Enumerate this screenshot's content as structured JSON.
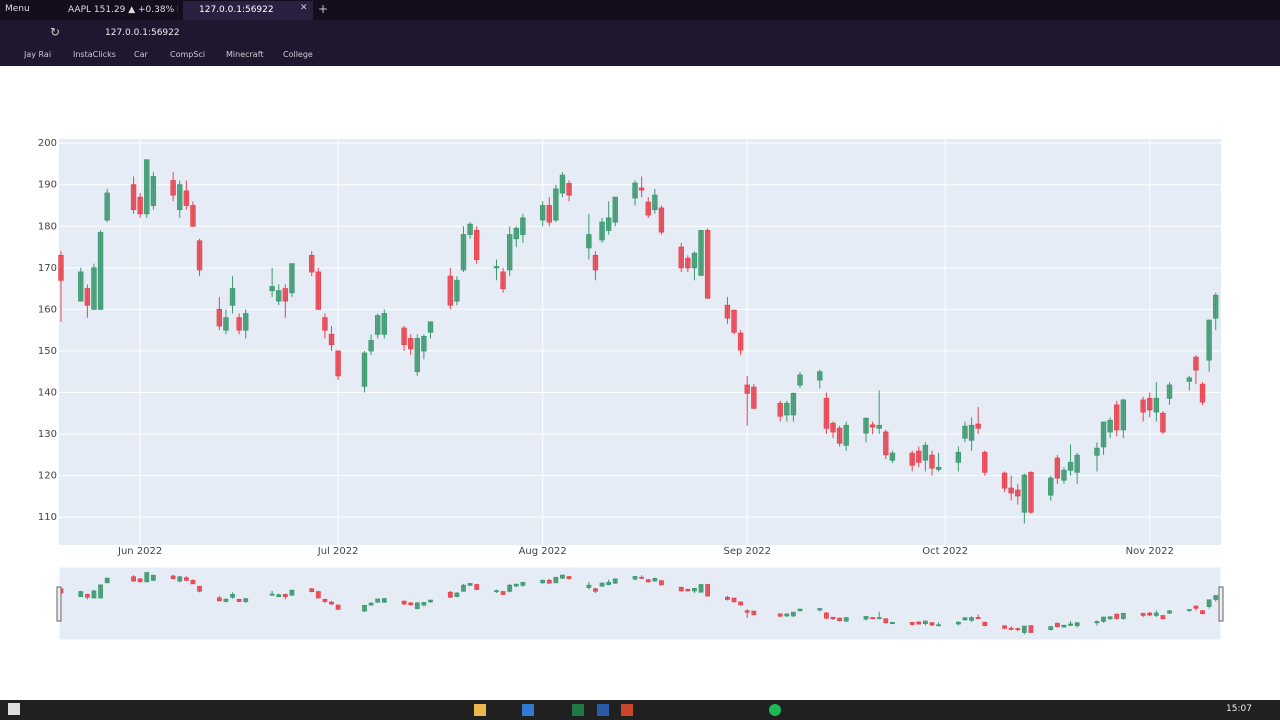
{
  "browser": {
    "menu": "Menu",
    "tabs": [
      "AAPL 151.29 ▲ +0.38% BT",
      "127.0.0.1:56922"
    ],
    "url": "127.0.0.1:56922",
    "bookmarks": [
      "Jay Rai",
      "InstaClicks",
      "Car",
      "CompSci",
      "Minecraft",
      "College"
    ]
  },
  "taskbar": {
    "time": "15:07"
  },
  "chart_data": {
    "type": "candlestick",
    "x": [
      -12,
      -9,
      -8,
      -7,
      -6,
      -5,
      -1,
      0,
      1,
      2,
      5,
      6,
      7,
      8,
      9,
      12,
      13,
      14,
      15,
      16,
      20,
      21,
      22,
      23,
      26,
      27,
      28,
      29,
      30,
      34,
      35,
      36,
      37,
      40,
      41,
      42,
      43,
      44,
      47,
      48,
      49,
      50,
      51,
      54,
      55,
      56,
      57,
      58,
      61,
      62,
      63,
      64,
      65,
      68,
      69,
      70,
      71,
      72,
      75,
      76,
      77,
      78,
      79,
      82,
      83,
      84,
      85,
      86,
      89,
      90,
      91,
      92,
      93,
      97,
      98,
      99,
      100,
      103,
      104,
      105,
      106,
      107,
      110,
      111,
      112,
      113,
      114,
      117,
      118,
      119,
      120,
      121,
      124,
      125,
      126,
      127,
      128,
      131,
      132,
      133,
      134,
      135,
      138,
      139,
      140,
      141,
      142,
      145,
      146,
      147,
      148,
      149,
      152,
      153,
      154,
      155,
      156,
      159,
      160,
      161,
      162,
      163
    ],
    "open": [
      173,
      162,
      165,
      160,
      160,
      181.5,
      190,
      187,
      183,
      185,
      191,
      184,
      188.5,
      185,
      176.5,
      160,
      155,
      161,
      158,
      155,
      164.5,
      162,
      165,
      164,
      173,
      169,
      158,
      154,
      150,
      141.5,
      150,
      154,
      154,
      155.5,
      153,
      145,
      150,
      154.5,
      168,
      162,
      169.5,
      178,
      179,
      170,
      169,
      169.5,
      177,
      178,
      181.5,
      185,
      181.5,
      188,
      190.3,
      174.8,
      173,
      176.7,
      179,
      181,
      186.8,
      189.2,
      185.8,
      184,
      184.4,
      175,
      172.3,
      170,
      168.2,
      179,
      161,
      159.8,
      154.3,
      141.8,
      141.3,
      137.4,
      134.6,
      134.6,
      141.8,
      143,
      138.6,
      132.6,
      131.4,
      127.3,
      130.2,
      132.2,
      131.4,
      130.5,
      123.7,
      125.4,
      125.9,
      123.7,
      124.9,
      121.5,
      123.2,
      129,
      128.5,
      132.4,
      125.6,
      120.6,
      117,
      116.5,
      111.2,
      120.8,
      115.3,
      124.2,
      118.9,
      121.3,
      120.8,
      124.9,
      126.9,
      130.5,
      137,
      131,
      138.2,
      138.6,
      135.3,
      135,
      138.6,
      142.7,
      148.5,
      142,
      147.8,
      157.9
    ],
    "high": [
      174,
      170,
      166,
      171,
      179,
      189,
      192,
      188,
      196,
      193,
      193,
      191,
      191,
      186,
      177,
      163,
      160,
      168,
      159,
      160,
      170,
      166,
      166,
      171,
      174,
      170,
      159,
      156,
      150,
      150,
      154,
      159,
      160,
      156,
      154,
      154,
      154,
      157,
      170,
      168,
      180,
      181,
      180,
      172,
      170,
      180,
      180,
      183,
      186,
      187,
      190,
      193,
      191,
      183,
      174,
      182,
      186,
      187,
      191,
      192,
      187,
      189,
      185,
      176,
      173,
      174,
      179,
      179.5,
      163,
      160,
      155,
      144,
      142,
      138,
      138,
      140,
      145,
      145.5,
      140,
      133,
      132,
      133,
      134,
      133,
      140.5,
      131,
      126,
      126,
      127,
      128,
      126,
      125.5,
      127,
      133,
      134,
      136.5,
      126,
      121,
      120,
      118,
      120.5,
      121,
      120,
      125,
      122,
      127.5,
      125.5,
      128,
      133,
      134,
      138,
      138.5,
      139,
      140,
      142.5,
      135.5,
      142.5,
      144,
      149,
      142.5,
      157.6,
      164
    ],
    "low": [
      157,
      162,
      158,
      160,
      160,
      181,
      183,
      182,
      182,
      184,
      186,
      182,
      184,
      180,
      168,
      155,
      154,
      159,
      154,
      153,
      163,
      161,
      158,
      163,
      168,
      160,
      153,
      150,
      143,
      140,
      149,
      153,
      153,
      150,
      149,
      144,
      148,
      153,
      160,
      161,
      169,
      177,
      171,
      167,
      164,
      168,
      175,
      176,
      180,
      180,
      181,
      187,
      186,
      172,
      167,
      176,
      178,
      180,
      185,
      187,
      182,
      183,
      178,
      169,
      169,
      167,
      168,
      162.5,
      156.5,
      154,
      149,
      132,
      136,
      133,
      133,
      133,
      141,
      141,
      130,
      129,
      127,
      126,
      128,
      130,
      130,
      124,
      123,
      121,
      122,
      121,
      120,
      121,
      121,
      128,
      126,
      130,
      120,
      116,
      114,
      113,
      108.5,
      110.8,
      114,
      118,
      118,
      120,
      118,
      121,
      125,
      129,
      129.5,
      129,
      133,
      134,
      133,
      130,
      137,
      140.5,
      142,
      137,
      145,
      155
    ],
    "close": [
      167,
      169,
      161,
      170,
      178.5,
      188,
      184,
      183,
      196,
      192,
      187.5,
      190,
      185,
      180,
      169.5,
      156,
      158,
      165,
      155,
      159,
      165.5,
      164.5,
      162,
      171,
      169,
      160,
      155,
      151.5,
      144,
      149.5,
      152.5,
      158.5,
      159,
      151.5,
      150.5,
      153,
      153.5,
      157,
      161,
      167,
      178,
      180.5,
      172,
      170.3,
      165,
      178,
      179.5,
      182,
      185,
      181,
      189,
      192.3,
      187.5,
      178,
      169.5,
      181,
      182,
      187,
      190.4,
      188.7,
      182.7,
      187.5,
      178.6,
      170,
      170,
      173.5,
      179,
      162.7,
      157.9,
      154.5,
      150.2,
      139.8,
      136.2,
      134.3,
      137.4,
      139.8,
      144.2,
      145,
      131.4,
      130.5,
      127.8,
      132.1,
      133.8,
      131.7,
      132.1,
      125,
      125.4,
      122.5,
      123.2,
      127.3,
      121.8,
      122,
      125.6,
      131.9,
      132.1,
      131.4,
      120.8,
      117,
      115.8,
      115.1,
      120.1,
      111.2,
      119.4,
      119.4,
      121.3,
      123.2,
      124.9,
      126.6,
      132.9,
      133.3,
      131,
      138.2,
      135.3,
      135.8,
      138.6,
      130.5,
      141.8,
      143.5,
      145.4,
      137.7,
      157.4,
      163.4
    ],
    "increasing_color": "#3d9970",
    "decreasing_color": "#e8434f",
    "xlim": [
      -12.3,
      163.8
    ],
    "ylim": [
      103.3,
      201
    ],
    "xticks": [
      {
        "value": 0,
        "label": "Jun 2022"
      },
      {
        "value": 30,
        "label": "Jul 2022"
      },
      {
        "value": 61,
        "label": "Aug 2022"
      },
      {
        "value": 92,
        "label": "Sep 2022"
      },
      {
        "value": 122,
        "label": "Oct 2022"
      },
      {
        "value": 153,
        "label": "Nov 2022"
      }
    ],
    "yticks": [
      110,
      120,
      130,
      140,
      150,
      160,
      170,
      180,
      190,
      200
    ],
    "grid": true,
    "rangeslider": true
  }
}
